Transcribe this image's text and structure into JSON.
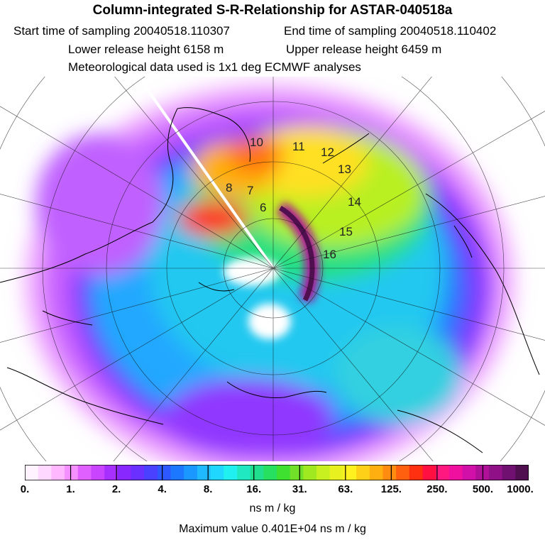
{
  "title": "Column-integrated S-R-Relationship for ASTAR-040518a",
  "start_time": "Start time of sampling 20040518.110307",
  "end_time": "End time of sampling 20040518.110402",
  "lower_release": "Lower release height 6158 m",
  "upper_release": "Upper release height 6459 m",
  "met_data": "Meteorological data used is 1x1 deg ECMWF analyses",
  "colorbar": {
    "colors": [
      "#fff3ff",
      "#ffd8ff",
      "#ffb8ff",
      "#f590ff",
      "#e060ff",
      "#c844ff",
      "#a830ff",
      "#8828ff",
      "#6a30ff",
      "#4a40ff",
      "#2e58ff",
      "#1c78ff",
      "#1a98ff",
      "#20b8ff",
      "#20d8ff",
      "#20f0f0",
      "#20e8c0",
      "#20e090",
      "#28e060",
      "#40e030",
      "#70e028",
      "#a0e820",
      "#c8f020",
      "#e8f020",
      "#fff020",
      "#ffd018",
      "#ffb010",
      "#ff8c10",
      "#ff6010",
      "#ff3010",
      "#ff1040",
      "#ff1880",
      "#f010a0",
      "#d010a8",
      "#b01098",
      "#901088",
      "#701070",
      "#501050"
    ],
    "ticks": [
      "0.",
      "1.",
      "2.",
      "4.",
      "8.",
      "16.",
      "31.",
      "63.",
      "125.",
      "250.",
      "500.",
      "1000."
    ],
    "units": "ns m / kg"
  },
  "max_value": "Maximum value  0.401E+04 ns m / kg",
  "sample_points": [
    "6",
    "7",
    "8",
    "10",
    "11",
    "12",
    "13",
    "14",
    "15",
    "16"
  ]
}
